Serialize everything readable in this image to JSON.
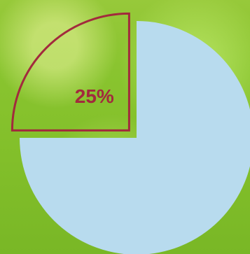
{
  "chart_data": {
    "type": "pie",
    "slices": [
      {
        "label": "25%",
        "value": 25,
        "color": "#B8DBEE",
        "emphasized": true
      },
      {
        "label": "",
        "value": 75,
        "color": "#B8DBEE",
        "emphasized": false
      }
    ],
    "accent_color": "#A22A3D",
    "background_color": "#89C42F",
    "title": "",
    "legend": "none"
  }
}
